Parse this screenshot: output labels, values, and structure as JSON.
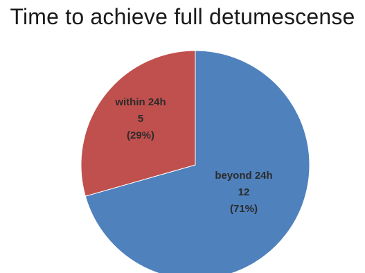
{
  "chart_data": {
    "type": "pie",
    "title": "Time to achieve full detumescense",
    "slices": [
      {
        "label": "beyond 24h",
        "value": 12,
        "percent_label": "(71%)",
        "color": "#4f81bd"
      },
      {
        "label": "within 24h",
        "value": 5,
        "percent_label": "(29%)",
        "color": "#c0504d"
      }
    ]
  }
}
